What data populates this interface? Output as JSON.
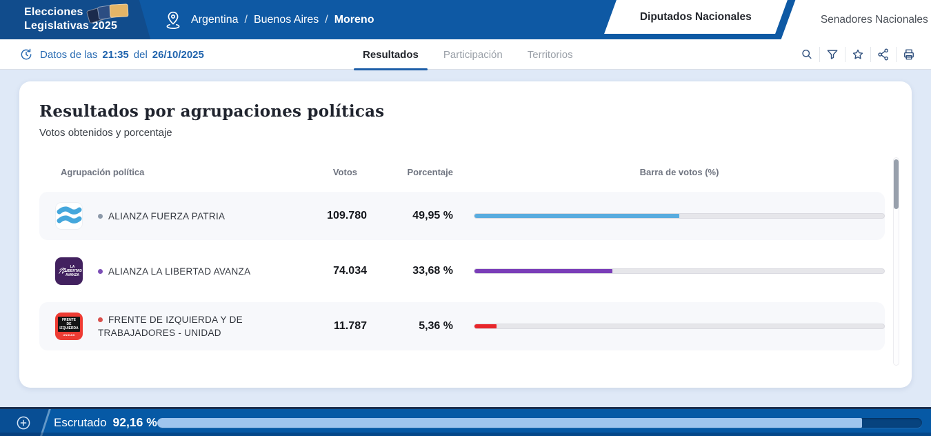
{
  "header": {
    "logo": {
      "line1": "Elecciones",
      "line2": "Legislativas 2025"
    },
    "breadcrumb": {
      "separator": "/",
      "items": [
        "Argentina",
        "Buenos Aires",
        "Moreno"
      ]
    },
    "election_tabs": [
      {
        "label": "Diputados Nacionales",
        "active": true
      },
      {
        "label": "Senadores Nacionales",
        "active": false
      }
    ]
  },
  "toolbar": {
    "data_time": {
      "prefix": "Datos de las",
      "time": "21:35",
      "middle": "del",
      "date": "26/10/2025"
    },
    "tabs": [
      {
        "label": "Resultados",
        "active": true
      },
      {
        "label": "Participación",
        "active": false
      },
      {
        "label": "Territorios",
        "active": false
      }
    ],
    "icons": [
      "search",
      "filter",
      "favorite",
      "share",
      "print"
    ]
  },
  "results": {
    "title": "Resultados por agrupaciones políticas",
    "subtitle": "Votos obtenidos y porcentaje",
    "columns": [
      "Agrupación política",
      "Votos",
      "Porcentaje",
      "Barra de votos (%)"
    ],
    "rows": [
      {
        "name": "ALIANZA FUERZA PATRIA",
        "votes": "109.780",
        "percent": "49,95 %",
        "percent_value": 49.95,
        "color": "#59ACDF",
        "dot_color": "#8C99A9",
        "logo": "argentine-flag-waves"
      },
      {
        "name": "ALIANZA LA LIBERTAD AVANZA",
        "votes": "74.034",
        "percent": "33,68 %",
        "percent_value": 33.68,
        "color": "#7A3DB8",
        "dot_color": "#7C4FB6",
        "logo": "la-libertad-avanza",
        "logo_text": "LA LIBERTAD AVANZA"
      },
      {
        "name": "FRENTE DE IZQUIERDA Y DE TRABAJADORES - UNIDAD",
        "votes": "11.787",
        "percent": "5,36 %",
        "percent_value": 5.36,
        "color": "#E8262B",
        "dot_color": "#D9504C",
        "logo": "frente-de-izquierda",
        "logo_text": "FRENTE DE IZQUIERDA",
        "logo_subtext": "UNIDAD"
      }
    ]
  },
  "footer": {
    "escrutado_label": "Escrutado",
    "escrutado_percent": "92,16 %",
    "escrutado_value": 92.16
  },
  "colors": {
    "header_blue": "#0E59A4",
    "header_dark_segment": "#114C8C",
    "accent_underline": "#1E5FA8",
    "page_background": "#DFE9F7",
    "footer_blue": "#0659A5",
    "progress_fill": "#9FC5EE",
    "bar_track": "#E6E6EA"
  }
}
